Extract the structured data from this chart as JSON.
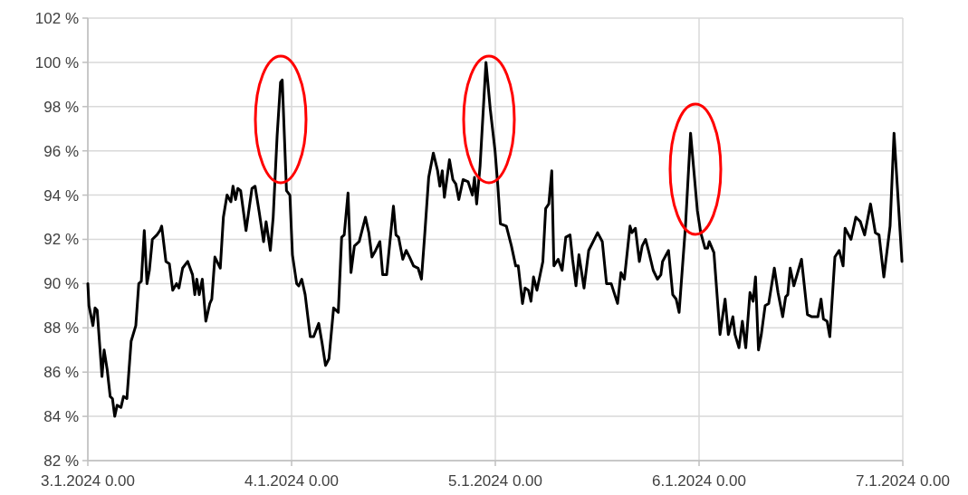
{
  "chart_data": {
    "type": "line",
    "xlim": [
      "2024-01-03T00:00",
      "2024-01-07T00:00"
    ],
    "xticks": [
      {
        "value": "2024-01-03T00:00",
        "label": "3.1.2024 0.00"
      },
      {
        "value": "2024-01-04T00:00",
        "label": "4.1.2024 0.00"
      },
      {
        "value": "2024-01-05T00:00",
        "label": "5.1.2024 0.00"
      },
      {
        "value": "2024-01-06T00:00",
        "label": "6.1.2024 0.00"
      },
      {
        "value": "2024-01-07T00:00",
        "label": "7.1.2024 0.00"
      }
    ],
    "ylim": [
      82,
      102
    ],
    "yticks": [
      {
        "value": 82,
        "label": "82 %"
      },
      {
        "value": 84,
        "label": "84 %"
      },
      {
        "value": 86,
        "label": "86 %"
      },
      {
        "value": 88,
        "label": "88 %"
      },
      {
        "value": 90,
        "label": "90 %"
      },
      {
        "value": 92,
        "label": "92 %"
      },
      {
        "value": 94,
        "label": "94 %"
      },
      {
        "value": 96,
        "label": "96 %"
      },
      {
        "value": 98,
        "label": "98 %"
      },
      {
        "value": 100,
        "label": "100 %"
      },
      {
        "value": 102,
        "label": "102 %"
      }
    ],
    "grid": true,
    "marker": "none",
    "line_style": "solid",
    "series": [
      {
        "color": "#000000",
        "x": [
          "2024-01-03T00:00",
          "2024-01-03T00:08",
          "2024-01-03T00:36",
          "2024-01-03T00:51",
          "2024-01-03T01:06",
          "2024-01-03T01:40",
          "2024-01-03T01:55",
          "2024-01-03T02:17",
          "2024-01-03T02:38",
          "2024-01-03T02:54",
          "2024-01-03T03:10",
          "2024-01-03T03:27",
          "2024-01-03T03:54",
          "2024-01-03T04:12",
          "2024-01-03T04:36",
          "2024-01-03T05:06",
          "2024-01-03T05:39",
          "2024-01-03T06:00",
          "2024-01-03T06:18",
          "2024-01-03T06:39",
          "2024-01-03T06:58",
          "2024-01-03T07:15",
          "2024-01-03T07:36",
          "2024-01-03T08:08",
          "2024-01-03T08:30",
          "2024-01-03T08:42",
          "2024-01-03T09:12",
          "2024-01-03T09:36",
          "2024-01-03T10:00",
          "2024-01-03T10:27",
          "2024-01-03T10:44",
          "2024-01-03T11:10",
          "2024-01-03T11:46",
          "2024-01-03T12:20",
          "2024-01-03T12:36",
          "2024-01-03T12:50",
          "2024-01-03T13:07",
          "2024-01-03T13:29",
          "2024-01-03T13:54",
          "2024-01-03T14:22",
          "2024-01-03T14:36",
          "2024-01-03T14:58",
          "2024-01-03T15:36",
          "2024-01-03T15:58",
          "2024-01-03T16:24",
          "2024-01-03T16:51",
          "2024-01-03T17:06",
          "2024-01-03T17:24",
          "2024-01-03T17:40",
          "2024-01-03T18:00",
          "2024-01-03T18:38",
          "2024-01-03T19:20",
          "2024-01-03T19:42",
          "2024-01-03T20:12",
          "2024-01-03T20:42",
          "2024-01-03T21:00",
          "2024-01-03T21:30",
          "2024-01-03T21:50",
          "2024-01-03T22:18",
          "2024-01-03T22:42",
          "2024-01-03T22:54",
          "2024-01-03T23:24",
          "2024-01-03T23:48",
          "2024-01-04T00:06",
          "2024-01-04T00:36",
          "2024-01-04T00:51",
          "2024-01-04T01:12",
          "2024-01-04T01:36",
          "2024-01-04T02:12",
          "2024-01-04T02:36",
          "2024-01-04T03:12",
          "2024-01-04T03:36",
          "2024-01-04T04:00",
          "2024-01-04T04:24",
          "2024-01-04T04:57",
          "2024-01-04T05:30",
          "2024-01-04T05:54",
          "2024-01-04T06:12",
          "2024-01-04T06:39",
          "2024-01-04T07:00",
          "2024-01-04T07:24",
          "2024-01-04T07:58",
          "2024-01-04T08:42",
          "2024-01-04T09:06",
          "2024-01-04T09:28",
          "2024-01-04T09:54",
          "2024-01-04T10:24",
          "2024-01-04T10:44",
          "2024-01-04T11:12",
          "2024-01-04T12:00",
          "2024-01-04T12:18",
          "2024-01-04T12:36",
          "2024-01-04T13:06",
          "2024-01-04T13:30",
          "2024-01-04T13:54",
          "2024-01-04T14:22",
          "2024-01-04T14:54",
          "2024-01-04T15:18",
          "2024-01-04T15:42",
          "2024-01-04T16:09",
          "2024-01-04T16:42",
          "2024-01-04T17:12",
          "2024-01-04T17:28",
          "2024-01-04T17:45",
          "2024-01-04T18:00",
          "2024-01-04T18:36",
          "2024-01-04T19:00",
          "2024-01-04T19:21",
          "2024-01-04T19:42",
          "2024-01-04T20:12",
          "2024-01-04T20:48",
          "2024-01-04T21:18",
          "2024-01-04T21:33",
          "2024-01-04T21:48",
          "2024-01-04T22:12",
          "2024-01-04T22:54",
          "2024-01-04T23:24",
          "2024-01-04T23:58",
          "2024-01-05T00:18",
          "2024-01-05T00:36",
          "2024-01-05T01:18",
          "2024-01-05T01:54",
          "2024-01-05T02:24",
          "2024-01-05T02:42",
          "2024-01-05T03:12",
          "2024-01-05T03:30",
          "2024-01-05T03:54",
          "2024-01-05T04:12",
          "2024-01-05T04:30",
          "2024-01-05T04:54",
          "2024-01-05T05:36",
          "2024-01-05T05:56",
          "2024-01-05T06:18",
          "2024-01-05T06:39",
          "2024-01-05T06:54",
          "2024-01-05T07:24",
          "2024-01-05T07:52",
          "2024-01-05T08:18",
          "2024-01-05T08:48",
          "2024-01-05T09:06",
          "2024-01-05T09:30",
          "2024-01-05T09:51",
          "2024-01-05T10:27",
          "2024-01-05T11:00",
          "2024-01-05T12:03",
          "2024-01-05T12:36",
          "2024-01-05T13:06",
          "2024-01-05T13:39",
          "2024-01-05T14:24",
          "2024-01-05T14:48",
          "2024-01-05T15:12",
          "2024-01-05T15:52",
          "2024-01-05T16:06",
          "2024-01-05T16:30",
          "2024-01-05T16:58",
          "2024-01-05T17:18",
          "2024-01-05T17:42",
          "2024-01-05T18:06",
          "2024-01-05T18:36",
          "2024-01-05T19:06",
          "2024-01-05T19:30",
          "2024-01-05T19:42",
          "2024-01-05T20:24",
          "2024-01-05T20:54",
          "2024-01-05T21:18",
          "2024-01-05T21:39",
          "2024-01-05T22:24",
          "2024-01-05T23:00",
          "2024-01-05T23:48",
          "2024-01-06T00:12",
          "2024-01-06T00:42",
          "2024-01-06T01:00",
          "2024-01-06T01:12",
          "2024-01-06T01:45",
          "2024-01-06T02:28",
          "2024-01-06T03:04",
          "2024-01-06T03:27",
          "2024-01-06T03:59",
          "2024-01-06T04:14",
          "2024-01-06T04:42",
          "2024-01-06T05:06",
          "2024-01-06T05:30",
          "2024-01-06T06:00",
          "2024-01-06T06:22",
          "2024-01-06T06:39",
          "2024-01-06T07:00",
          "2024-01-06T07:20",
          "2024-01-06T07:47",
          "2024-01-06T08:12",
          "2024-01-06T08:52",
          "2024-01-06T09:18",
          "2024-01-06T09:51",
          "2024-01-06T10:12",
          "2024-01-06T10:27",
          "2024-01-06T10:44",
          "2024-01-06T11:10",
          "2024-01-06T12:04",
          "2024-01-06T12:46",
          "2024-01-06T13:18",
          "2024-01-06T14:00",
          "2024-01-06T14:22",
          "2024-01-06T14:39",
          "2024-01-06T15:05",
          "2024-01-06T15:24",
          "2024-01-06T16:00",
          "2024-01-06T16:30",
          "2024-01-06T16:58",
          "2024-01-06T17:12",
          "2024-01-06T17:54",
          "2024-01-06T18:28",
          "2024-01-06T19:00",
          "2024-01-06T19:30",
          "2024-01-06T20:12",
          "2024-01-06T20:46",
          "2024-01-06T21:12",
          "2024-01-06T21:46",
          "2024-01-06T22:30",
          "2024-01-06T22:58",
          "2024-01-06T23:54"
        ],
        "values": [
          90.0,
          89.0,
          88.1,
          88.9,
          88.8,
          85.8,
          87.0,
          86.1,
          84.9,
          84.8,
          84.0,
          84.5,
          84.4,
          84.9,
          84.8,
          87.4,
          88.1,
          90.0,
          90.1,
          92.4,
          90.0,
          90.6,
          92.0,
          92.2,
          92.4,
          92.6,
          91.0,
          90.9,
          89.7,
          90.0,
          89.8,
          90.7,
          91.0,
          90.4,
          89.5,
          90.2,
          89.5,
          90.2,
          88.3,
          89.1,
          89.3,
          91.2,
          90.7,
          93.0,
          94.0,
          93.7,
          94.4,
          93.8,
          94.3,
          94.2,
          92.4,
          94.3,
          94.4,
          93.2,
          91.9,
          92.8,
          91.5,
          93.0,
          96.7,
          99.1,
          99.2,
          94.2,
          94.0,
          91.3,
          90.0,
          89.9,
          90.2,
          89.5,
          87.6,
          87.6,
          88.2,
          87.3,
          86.3,
          86.6,
          88.9,
          88.7,
          92.1,
          92.2,
          94.1,
          90.5,
          91.7,
          91.9,
          93.0,
          92.3,
          91.2,
          91.5,
          91.9,
          90.4,
          90.4,
          93.5,
          92.2,
          92.1,
          91.1,
          91.5,
          91.2,
          90.8,
          90.7,
          90.2,
          92.3,
          94.8,
          95.9,
          95.1,
          94.4,
          95.1,
          93.9,
          95.6,
          94.7,
          94.5,
          93.8,
          94.7,
          94.6,
          94.0,
          94.8,
          93.6,
          95.3,
          100.0,
          97.9,
          96.0,
          94.4,
          92.7,
          92.6,
          91.7,
          90.8,
          90.8,
          89.1,
          89.8,
          89.7,
          89.2,
          90.3,
          89.7,
          91.0,
          93.4,
          93.6,
          95.1,
          90.8,
          91.1,
          90.6,
          92.1,
          92.2,
          91.1,
          89.9,
          91.3,
          89.8,
          91.5,
          92.3,
          91.9,
          90.0,
          90.0,
          89.1,
          90.5,
          90.2,
          92.6,
          92.3,
          92.5,
          91.0,
          91.7,
          92.0,
          91.4,
          90.6,
          90.2,
          90.4,
          91.0,
          91.5,
          89.5,
          89.3,
          88.7,
          92.6,
          96.8,
          93.3,
          92.3,
          91.6,
          91.6,
          91.9,
          91.4,
          87.7,
          89.3,
          87.7,
          88.5,
          87.7,
          87.1,
          88.3,
          87.1,
          89.6,
          89.2,
          90.3,
          87.0,
          87.7,
          89.0,
          89.1,
          90.7,
          89.6,
          88.5,
          89.4,
          89.5,
          90.7,
          89.9,
          91.1,
          88.6,
          88.5,
          88.5,
          89.3,
          88.4,
          88.3,
          87.6,
          91.2,
          91.5,
          90.8,
          92.5,
          92.0,
          93.0,
          92.8,
          92.2,
          93.6,
          92.3,
          92.2,
          90.3,
          92.6,
          96.8,
          91.0
        ]
      }
    ]
  }
}
